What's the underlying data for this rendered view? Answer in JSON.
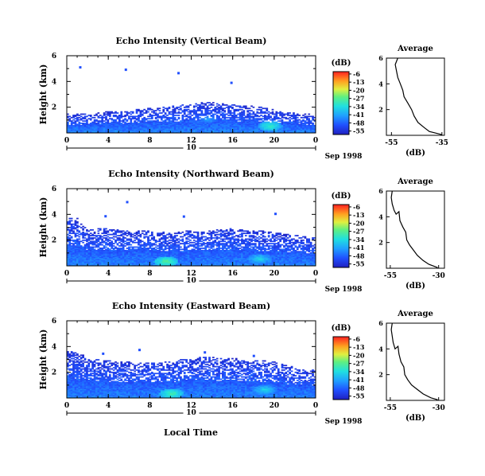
{
  "chart_data": [
    {
      "type": "heatmap",
      "title": "Echo Intensity (Vertical Beam)",
      "ylabel": "Height (km)",
      "xlabel": "",
      "date_label": "Sep 1998",
      "day_marker": "10",
      "xlim": [
        0,
        24
      ],
      "ylim": [
        0,
        6
      ],
      "x_ticks": [
        "0",
        "4",
        "8",
        "12",
        "16",
        "20",
        "0"
      ],
      "y_ticks": [
        "2",
        "4",
        "6"
      ],
      "colorbar": {
        "label": "(dB)",
        "ticks": [
          "-6",
          "-13",
          "-20",
          "-27",
          "-34",
          "-41",
          "-48",
          "-55"
        ],
        "range": [
          -58,
          -4
        ]
      },
      "coverage_top_km": [
        1.3,
        1.3,
        1.3,
        1.4,
        1.5,
        1.5,
        1.6,
        1.7,
        1.8,
        1.8,
        1.9,
        2.0,
        2.1,
        2.2,
        2.2,
        2.1,
        2.0,
        1.9,
        1.9,
        1.8,
        1.6,
        1.4,
        1.4,
        1.3,
        1.3
      ],
      "bright_spots": [
        {
          "t": 19.5,
          "h": 0.5,
          "db": -30
        },
        {
          "t": 13.5,
          "h": 1.0,
          "db": -40
        }
      ],
      "profile": {
        "title": "Average",
        "xlabel": "(dB)",
        "xlim": [
          -57,
          -34
        ],
        "x_ticks": [
          "-55",
          "-35"
        ],
        "y_ticks": [
          "2",
          "4",
          "6"
        ],
        "points": [
          [
            -52.5,
            6.0
          ],
          [
            -53.5,
            5.5
          ],
          [
            -53.0,
            5.0
          ],
          [
            -52.5,
            4.5
          ],
          [
            -51.5,
            4.0
          ],
          [
            -50.5,
            3.5
          ],
          [
            -50.0,
            3.0
          ],
          [
            -48.5,
            2.5
          ],
          [
            -47.0,
            2.0
          ],
          [
            -46.0,
            1.5
          ],
          [
            -44.5,
            1.0
          ],
          [
            -42.0,
            0.6
          ],
          [
            -40.0,
            0.3
          ],
          [
            -37.0,
            0.15
          ],
          [
            -35.0,
            0.05
          ]
        ]
      }
    },
    {
      "type": "heatmap",
      "title": "Echo Intensity (Northward Beam)",
      "ylabel": "Height (km)",
      "xlabel": "",
      "date_label": "Sep 1998",
      "day_marker": "10",
      "xlim": [
        0,
        24
      ],
      "ylim": [
        0,
        6
      ],
      "x_ticks": [
        "0",
        "4",
        "8",
        "12",
        "16",
        "20",
        "0"
      ],
      "y_ticks": [
        "2",
        "4",
        "6"
      ],
      "colorbar": {
        "label": "(dB)",
        "ticks": [
          "-6",
          "-13",
          "-20",
          "-27",
          "-34",
          "-41",
          "-48",
          "-55"
        ],
        "range": [
          -58,
          -4
        ]
      },
      "coverage_top_km": [
        3.5,
        3.5,
        2.6,
        2.7,
        2.7,
        2.6,
        2.6,
        2.6,
        2.5,
        2.5,
        2.4,
        2.5,
        2.6,
        2.6,
        2.6,
        2.7,
        2.7,
        2.6,
        2.6,
        2.5,
        2.4,
        2.3,
        2.2,
        2.1,
        2.0
      ],
      "bright_spots": [
        {
          "t": 9.5,
          "h": 0.3,
          "db": -27
        },
        {
          "t": 18.5,
          "h": 0.5,
          "db": -34
        }
      ],
      "profile": {
        "title": "Average",
        "xlabel": "(dB)",
        "xlim": [
          -57,
          -27
        ],
        "x_ticks": [
          "-55",
          "-30"
        ],
        "y_ticks": [
          "2",
          "4",
          "6"
        ],
        "points": [
          [
            -54.0,
            6.0
          ],
          [
            -54.5,
            5.5
          ],
          [
            -54.0,
            5.0
          ],
          [
            -53.0,
            4.5
          ],
          [
            -52.0,
            4.2
          ],
          [
            -50.5,
            4.4
          ],
          [
            -50.0,
            3.7
          ],
          [
            -48.5,
            3.2
          ],
          [
            -47.0,
            2.8
          ],
          [
            -46.5,
            2.2
          ],
          [
            -45.0,
            1.8
          ],
          [
            -43.0,
            1.4
          ],
          [
            -41.0,
            1.0
          ],
          [
            -38.0,
            0.6
          ],
          [
            -35.0,
            0.3
          ],
          [
            -30.5,
            0.05
          ]
        ]
      }
    },
    {
      "type": "heatmap",
      "title": "Echo Intensity (Eastward Beam)",
      "ylabel": "Height (km)",
      "xlabel": "Local Time",
      "date_label": "Sep 1998",
      "day_marker": "10",
      "xlim": [
        0,
        24
      ],
      "ylim": [
        0,
        6
      ],
      "x_ticks": [
        "0",
        "4",
        "8",
        "12",
        "16",
        "20",
        "0"
      ],
      "y_ticks": [
        "2",
        "4",
        "6"
      ],
      "colorbar": {
        "label": "(dB)",
        "ticks": [
          "-6",
          "-13",
          "-20",
          "-27",
          "-34",
          "-41",
          "-48",
          "-55"
        ],
        "range": [
          -58,
          -4
        ]
      },
      "coverage_top_km": [
        3.5,
        3.3,
        3.0,
        2.8,
        2.7,
        2.7,
        2.6,
        2.6,
        2.6,
        2.6,
        2.7,
        2.8,
        2.9,
        3.0,
        3.0,
        2.9,
        2.9,
        2.8,
        2.8,
        2.7,
        2.6,
        2.4,
        2.2,
        2.0,
        2.0
      ],
      "bright_spots": [
        {
          "t": 10.0,
          "h": 0.3,
          "db": -28
        },
        {
          "t": 19.0,
          "h": 0.6,
          "db": -34
        }
      ],
      "profile": {
        "title": "Average",
        "xlabel": "(dB)",
        "xlim": [
          -57,
          -27
        ],
        "x_ticks": [
          "-55",
          "-30"
        ],
        "y_ticks": [
          "2",
          "4",
          "6"
        ],
        "points": [
          [
            -54.0,
            6.0
          ],
          [
            -54.5,
            5.5
          ],
          [
            -54.0,
            5.0
          ],
          [
            -53.5,
            4.5
          ],
          [
            -52.5,
            4.0
          ],
          [
            -51.0,
            4.2
          ],
          [
            -50.5,
            3.6
          ],
          [
            -49.5,
            3.0
          ],
          [
            -48.0,
            2.6
          ],
          [
            -47.5,
            2.0
          ],
          [
            -46.0,
            1.6
          ],
          [
            -44.0,
            1.2
          ],
          [
            -41.5,
            0.9
          ],
          [
            -38.0,
            0.5
          ],
          [
            -34.0,
            0.2
          ],
          [
            -30.5,
            0.05
          ]
        ]
      }
    }
  ]
}
